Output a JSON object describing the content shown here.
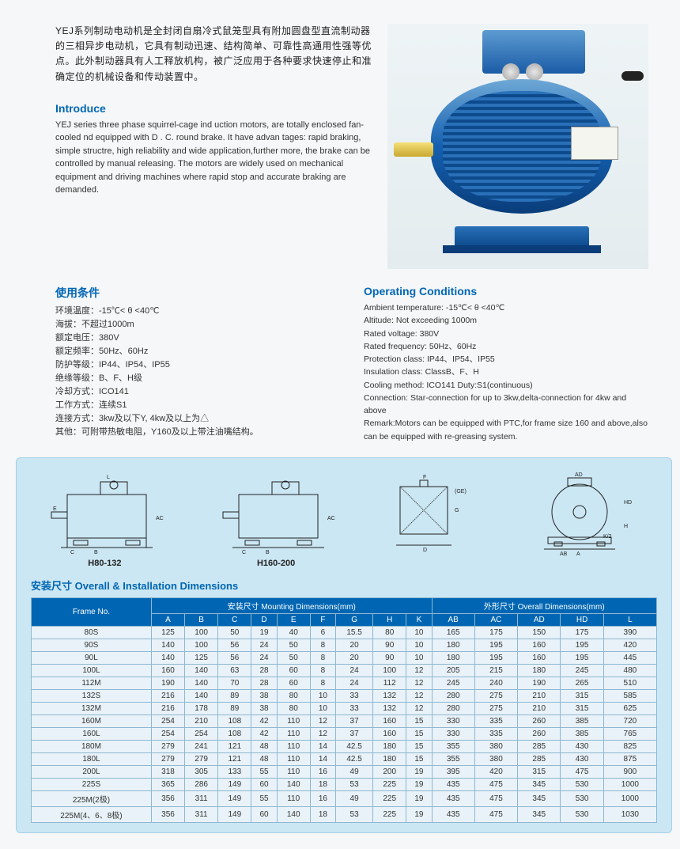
{
  "intro_cn": "YEJ系列制动电动机是全封闭自扇冷式鼠笼型具有附加圆盘型直流制动器的三相异步电动机，它具有制动迅速、结构简单、可靠性高通用性强等优点。此外制动器具有人工释放机构，被广泛应用于各种要求快速停止和准确定位的机械设备和传动装置中。",
  "introduce_title": "Introduce",
  "intro_en": "YEJ series three phase squirrel-cage ind uction motors, are totally enclosed fan-cooled nd equipped with D . C. round brake. It have advan tages: rapid braking, simple structre, high reliability and wide application,further more, the brake can be controlled by manual releasing. The motors are widely used on mechanical equipment and driving machines where rapid stop and accurate braking are demanded.",
  "cond_cn_title": "使用条件",
  "cond_cn": [
    "环境温度：-15℃< θ <40℃",
    "海拔：不超过1000m",
    "额定电压：380V",
    "额定频率：50Hz、60Hz",
    "防护等级：IP44、IP54、IP55",
    "绝缘等级：B、F、H级",
    "冷却方式：ICO141",
    "工作方式：连续S1",
    "连接方式：3kw及以下Y, 4kw及以上为△",
    "其他：可附带热敏电阻，Y160及以上带注油嘴结构。"
  ],
  "cond_en_title": "Operating Conditions",
  "cond_en": [
    "Ambient temperature: -15℃< θ <40℃",
    "Altitude: Not exceeding 1000m",
    "Rated voltage: 380V",
    "Rated frequency: 50Hz、60Hz",
    "Protection class: IP44、IP54、IP55",
    "Insulation class: ClassB、F、H",
    "Cooling method: ICO141 Duty:S1(continuous)",
    "Connection: Star-connection for up to 3kw,delta-connection for 4kw and above",
    "Remark:Motors can be equipped with PTC,for frame size 160 and above,also can be equipped with re-greasing system."
  ],
  "diagram_labels": {
    "d1": "H80-132",
    "d2": "H160-200"
  },
  "table_title": "安装尺寸 Overall & Installation Dimensions",
  "table": {
    "header_top": {
      "frame": "Frame No.",
      "mounting": "安装尺寸 Mounting Dimensions(mm)",
      "overall": "外形尺寸 Overall Dimensions(mm)"
    },
    "columns": [
      "A",
      "B",
      "C",
      "D",
      "E",
      "F",
      "G",
      "H",
      "K",
      "AB",
      "AC",
      "AD",
      "HD",
      "L"
    ],
    "rows": [
      {
        "f": "80S",
        "v": [
          125,
          100,
          50,
          19,
          40,
          6,
          15.5,
          80,
          10,
          165,
          175,
          150,
          175,
          390
        ]
      },
      {
        "f": "90S",
        "v": [
          140,
          100,
          56,
          24,
          50,
          8,
          20,
          90,
          10,
          180,
          195,
          160,
          195,
          420
        ]
      },
      {
        "f": "90L",
        "v": [
          140,
          125,
          56,
          24,
          50,
          8,
          20,
          90,
          10,
          180,
          195,
          160,
          195,
          445
        ]
      },
      {
        "f": "100L",
        "v": [
          160,
          140,
          63,
          28,
          60,
          8,
          24,
          100,
          12,
          205,
          215,
          180,
          245,
          480
        ]
      },
      {
        "f": "112M",
        "v": [
          190,
          140,
          70,
          28,
          60,
          8,
          24,
          112,
          12,
          245,
          240,
          190,
          265,
          510
        ]
      },
      {
        "f": "132S",
        "v": [
          216,
          140,
          89,
          38,
          80,
          10,
          33,
          132,
          12,
          280,
          275,
          210,
          315,
          585
        ]
      },
      {
        "f": "132M",
        "v": [
          216,
          178,
          89,
          38,
          80,
          10,
          33,
          132,
          12,
          280,
          275,
          210,
          315,
          625
        ]
      },
      {
        "f": "160M",
        "v": [
          254,
          210,
          108,
          42,
          110,
          12,
          37,
          160,
          15,
          330,
          335,
          260,
          385,
          720
        ]
      },
      {
        "f": "160L",
        "v": [
          254,
          254,
          108,
          42,
          110,
          12,
          37,
          160,
          15,
          330,
          335,
          260,
          385,
          765
        ]
      },
      {
        "f": "180M",
        "v": [
          279,
          241,
          121,
          48,
          110,
          14,
          42.5,
          180,
          15,
          355,
          380,
          285,
          430,
          825
        ]
      },
      {
        "f": "180L",
        "v": [
          279,
          279,
          121,
          48,
          110,
          14,
          42.5,
          180,
          15,
          355,
          380,
          285,
          430,
          875
        ]
      },
      {
        "f": "200L",
        "v": [
          318,
          305,
          133,
          55,
          110,
          16,
          49,
          200,
          19,
          395,
          420,
          315,
          475,
          900
        ]
      },
      {
        "f": "225S",
        "v": [
          365,
          286,
          149,
          60,
          140,
          18,
          53,
          225,
          19,
          435,
          475,
          345,
          530,
          1000
        ]
      },
      {
        "f": "225M(2极)",
        "v": [
          356,
          311,
          149,
          55,
          110,
          16,
          49,
          225,
          19,
          435,
          475,
          345,
          530,
          1000
        ]
      },
      {
        "f": "225M(4、6、8极)",
        "v": [
          356,
          311,
          149,
          60,
          140,
          18,
          53,
          225,
          19,
          435,
          475,
          345,
          530,
          1030
        ]
      }
    ]
  },
  "colors": {
    "brand_blue": "#0066b3",
    "panel_bg": "#cbe7f3",
    "table_head": "#0066b3",
    "table_row": "#e8f2f8",
    "border": "#8fb8d0"
  }
}
